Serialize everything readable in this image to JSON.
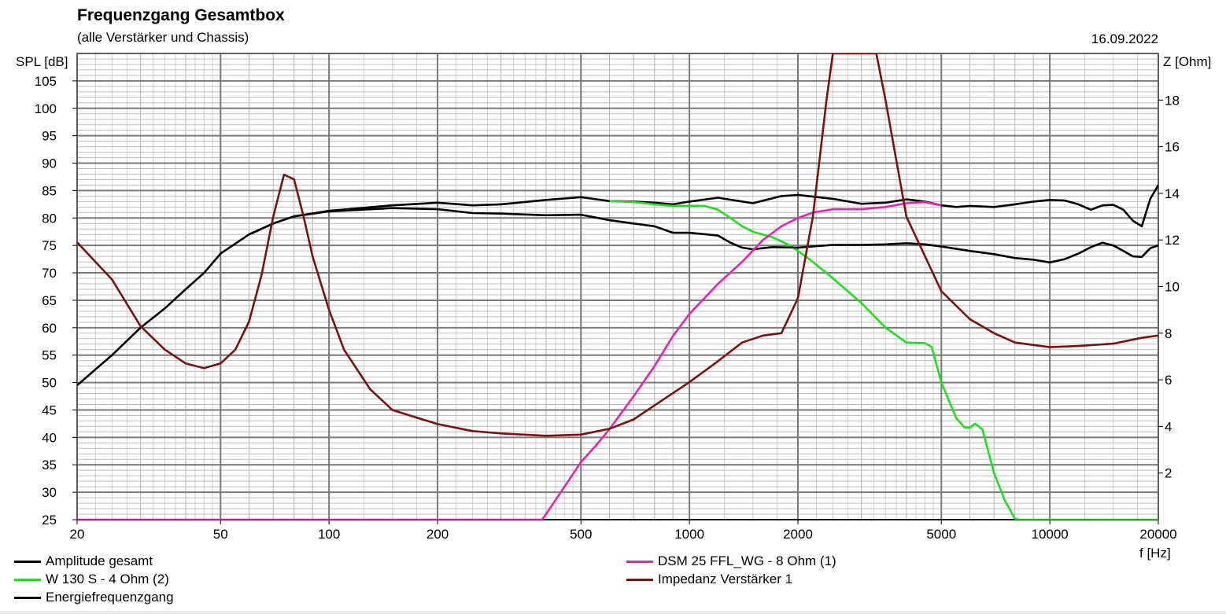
{
  "title": "Frequenzgang Gesamtbox",
  "subtitle": "(alle Verstärker und Chassis)",
  "date": "16.09.2022",
  "chart_data": {
    "type": "line",
    "xscale": "log",
    "xlim": [
      20,
      20000
    ],
    "xlabel": "f [Hz]",
    "xticks": [
      20,
      50,
      100,
      200,
      500,
      1000,
      2000,
      5000,
      10000,
      20000
    ],
    "ylabel": "SPL [dB]",
    "ylim": [
      25,
      110
    ],
    "yticks": [
      25,
      30,
      35,
      40,
      45,
      50,
      55,
      60,
      65,
      70,
      75,
      80,
      85,
      90,
      95,
      100,
      105
    ],
    "y2label": "Z [Ohm]",
    "y2lim": [
      0,
      20
    ],
    "y2ticks": [
      2,
      4,
      6,
      8,
      10,
      12,
      14,
      16,
      18
    ],
    "grid": true,
    "series": [
      {
        "name": "Amplitude gesamt",
        "color": "#000000",
        "axis": "left",
        "points": [
          [
            20,
            49.5
          ],
          [
            25,
            55
          ],
          [
            30,
            60
          ],
          [
            35,
            63.5
          ],
          [
            40,
            67
          ],
          [
            45,
            70
          ],
          [
            50,
            73.5
          ],
          [
            60,
            77
          ],
          [
            70,
            79
          ],
          [
            80,
            80.3
          ],
          [
            100,
            81.3
          ],
          [
            150,
            82.3
          ],
          [
            200,
            82.8
          ],
          [
            250,
            82.3
          ],
          [
            300,
            82.5
          ],
          [
            400,
            83.3
          ],
          [
            500,
            83.8
          ],
          [
            600,
            83.1
          ],
          [
            700,
            83
          ],
          [
            800,
            82.8
          ],
          [
            900,
            82.5
          ],
          [
            1000,
            83
          ],
          [
            1200,
            83.7
          ],
          [
            1500,
            82.7
          ],
          [
            1800,
            84
          ],
          [
            2000,
            84.2
          ],
          [
            2500,
            83.5
          ],
          [
            3000,
            82.6
          ],
          [
            3500,
            82.8
          ],
          [
            4000,
            83.4
          ],
          [
            4500,
            83
          ],
          [
            5000,
            82.3
          ],
          [
            5500,
            82
          ],
          [
            6000,
            82.2
          ],
          [
            7000,
            82
          ],
          [
            8000,
            82.5
          ],
          [
            9000,
            83
          ],
          [
            10000,
            83.3
          ],
          [
            11000,
            83.2
          ],
          [
            12000,
            82.5
          ],
          [
            13000,
            81.5
          ],
          [
            14000,
            82.3
          ],
          [
            15000,
            82.4
          ],
          [
            16000,
            81.5
          ],
          [
            17000,
            79.5
          ],
          [
            18000,
            78.5
          ],
          [
            19000,
            83.5
          ],
          [
            20000,
            86
          ]
        ]
      },
      {
        "name": "W 130 S - 4 Ohm (2)",
        "color": "#22dd22",
        "axis": "left",
        "points": [
          [
            600,
            83.1
          ],
          [
            700,
            82.9
          ],
          [
            800,
            82.5
          ],
          [
            900,
            82.2
          ],
          [
            1000,
            82.2
          ],
          [
            1100,
            82.2
          ],
          [
            1200,
            81.5
          ],
          [
            1300,
            80
          ],
          [
            1400,
            78.5
          ],
          [
            1500,
            77.5
          ],
          [
            1700,
            76.5
          ],
          [
            1900,
            75
          ],
          [
            2000,
            74
          ],
          [
            2200,
            72
          ],
          [
            2500,
            69
          ],
          [
            3000,
            64.5
          ],
          [
            3500,
            60
          ],
          [
            4000,
            57.3
          ],
          [
            4500,
            57.2
          ],
          [
            4700,
            56.5
          ],
          [
            5000,
            50
          ],
          [
            5500,
            43.5
          ],
          [
            5800,
            41.8
          ],
          [
            6000,
            41.8
          ],
          [
            6200,
            42.5
          ],
          [
            6500,
            41.5
          ],
          [
            7000,
            33.5
          ],
          [
            7500,
            28.5
          ],
          [
            8000,
            25.2
          ],
          [
            8200,
            25
          ],
          [
            20000,
            25
          ]
        ]
      },
      {
        "name": "Energiefrequenzgang",
        "color": "#000000",
        "axis": "left",
        "points": [
          [
            60,
            77
          ],
          [
            70,
            79
          ],
          [
            80,
            80.3
          ],
          [
            100,
            81.2
          ],
          [
            150,
            81.8
          ],
          [
            200,
            81.6
          ],
          [
            250,
            80.9
          ],
          [
            300,
            80.8
          ],
          [
            400,
            80.5
          ],
          [
            500,
            80.6
          ],
          [
            600,
            79.6
          ],
          [
            700,
            79
          ],
          [
            800,
            78.5
          ],
          [
            900,
            77.3
          ],
          [
            1000,
            77.3
          ],
          [
            1200,
            76.8
          ],
          [
            1300,
            75.5
          ],
          [
            1400,
            74.6
          ],
          [
            1500,
            74.3
          ],
          [
            1700,
            74.7
          ],
          [
            2000,
            74.6
          ],
          [
            2500,
            75.1
          ],
          [
            3000,
            75.1
          ],
          [
            3500,
            75.2
          ],
          [
            4000,
            75.4
          ],
          [
            4500,
            75.2
          ],
          [
            5000,
            74.8
          ],
          [
            6000,
            74
          ],
          [
            7000,
            73.4
          ],
          [
            8000,
            72.7
          ],
          [
            9000,
            72.4
          ],
          [
            10000,
            71.9
          ],
          [
            11000,
            72.5
          ],
          [
            12000,
            73.5
          ],
          [
            13000,
            74.7
          ],
          [
            14000,
            75.5
          ],
          [
            15000,
            75
          ],
          [
            16000,
            74
          ],
          [
            17000,
            73
          ],
          [
            18000,
            72.9
          ],
          [
            19000,
            74.5
          ],
          [
            20000,
            75
          ]
        ]
      },
      {
        "name": "DSM 25 FFL_WG - 8 Ohm (1)",
        "color": "#ee22aa",
        "axis": "left",
        "points": [
          [
            20,
            25
          ],
          [
            390,
            25
          ],
          [
            400,
            26
          ],
          [
            450,
            31
          ],
          [
            500,
            35.5
          ],
          [
            550,
            38.5
          ],
          [
            600,
            41.5
          ],
          [
            700,
            47.5
          ],
          [
            800,
            53
          ],
          [
            900,
            58.5
          ],
          [
            1000,
            62.5
          ],
          [
            1200,
            68
          ],
          [
            1400,
            72
          ],
          [
            1600,
            76
          ],
          [
            1800,
            78.5
          ],
          [
            2000,
            80
          ],
          [
            2200,
            81
          ],
          [
            2500,
            81.6
          ],
          [
            3000,
            81.6
          ],
          [
            3500,
            82
          ],
          [
            4000,
            82.7
          ],
          [
            4500,
            82.9
          ],
          [
            5000,
            82.3
          ]
        ]
      },
      {
        "name": "Impedanz Verstärker 1",
        "color": "#7a1212",
        "axis": "right",
        "points": [
          [
            20,
            11.9
          ],
          [
            25,
            10.3
          ],
          [
            30,
            8.3
          ],
          [
            35,
            7.3
          ],
          [
            40,
            6.7
          ],
          [
            45,
            6.5
          ],
          [
            50,
            6.7
          ],
          [
            55,
            7.3
          ],
          [
            60,
            8.5
          ],
          [
            65,
            10.5
          ],
          [
            70,
            13
          ],
          [
            75,
            14.8
          ],
          [
            80,
            14.6
          ],
          [
            85,
            13
          ],
          [
            90,
            11.3
          ],
          [
            100,
            9
          ],
          [
            110,
            7.3
          ],
          [
            130,
            5.6
          ],
          [
            150,
            4.7
          ],
          [
            200,
            4.1
          ],
          [
            250,
            3.8
          ],
          [
            300,
            3.7
          ],
          [
            400,
            3.6
          ],
          [
            500,
            3.65
          ],
          [
            600,
            3.9
          ],
          [
            700,
            4.3
          ],
          [
            800,
            4.9
          ],
          [
            1000,
            5.9
          ],
          [
            1200,
            6.8
          ],
          [
            1400,
            7.6
          ],
          [
            1600,
            7.9
          ],
          [
            1800,
            8.0
          ],
          [
            2000,
            9.5
          ],
          [
            2200,
            13
          ],
          [
            2400,
            18
          ],
          [
            2500,
            20
          ],
          [
            3300,
            20
          ],
          [
            3500,
            18
          ],
          [
            4000,
            13
          ],
          [
            5000,
            9.8
          ],
          [
            6000,
            8.6
          ],
          [
            7000,
            8.0
          ],
          [
            8000,
            7.6
          ],
          [
            10000,
            7.4
          ],
          [
            12000,
            7.45
          ],
          [
            15000,
            7.55
          ],
          [
            18000,
            7.8
          ],
          [
            20000,
            7.9
          ]
        ]
      }
    ],
    "legend": [
      {
        "label": "Amplitude gesamt",
        "color": "#000000"
      },
      {
        "label": "W 130 S - 4 Ohm (2)",
        "color": "#22dd22"
      },
      {
        "label": "Energiefrequenzgang",
        "color": "#000000"
      },
      {
        "label": "DSM 25 FFL_WG - 8 Ohm (1)",
        "color": "#ee22aa"
      },
      {
        "label": "Impedanz Verstärker 1",
        "color": "#7a1212"
      }
    ]
  }
}
